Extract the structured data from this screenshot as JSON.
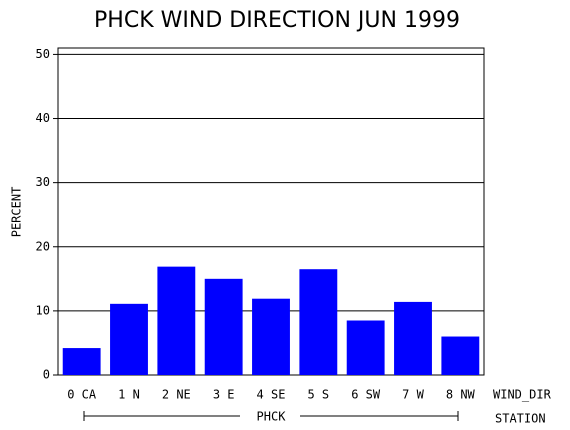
{
  "chart_data": {
    "type": "bar",
    "title": "PHCK WIND DIRECTION JUN 1999",
    "y_label": "PERCENT",
    "x_label": "WIND_DIR",
    "group_label": "PHCK",
    "group_axis_label": "STATION",
    "categories": [
      "0 CA",
      "1 N",
      "2 NE",
      "3 E",
      "4 SE",
      "5 S",
      "6 SW",
      "7 W",
      "8 NW"
    ],
    "values": [
      4.2,
      11.1,
      16.9,
      15.0,
      11.9,
      16.5,
      8.5,
      11.4,
      6.0
    ],
    "color": "#0000ff",
    "ylim": [
      0,
      51
    ],
    "yticks": [
      0,
      10,
      20,
      30,
      40,
      50
    ],
    "grid": true
  }
}
